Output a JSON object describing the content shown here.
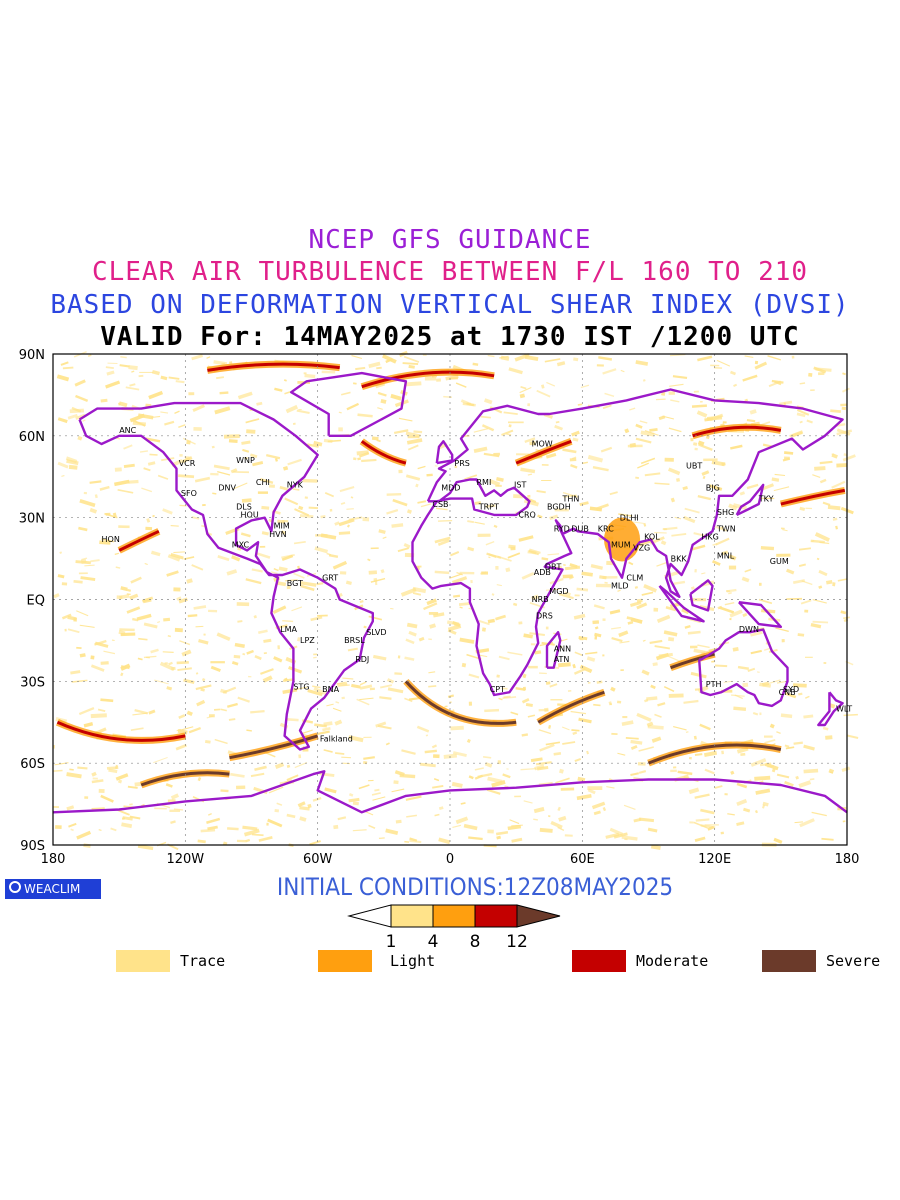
{
  "titles": {
    "line1": "NCEP GFS GUIDANCE",
    "line2": "CLEAR AIR TURBULENCE BETWEEN F/L 160 TO 210",
    "line3": "BASED ON DEFORMATION VERTICAL SHEAR INDEX (DVSI)",
    "line4": "VALID For: 14MAY2025 at 1730 IST /1200 UTC"
  },
  "colors": {
    "line1": "#9b1fd6",
    "line2": "#e0208a",
    "line3": "#2c46e0",
    "line4": "#000000",
    "coast": "#9b19c9",
    "trace": "#ffe38a",
    "light": "#ff9f0f",
    "moderate": "#c40000",
    "severe": "#6b3a2a"
  },
  "axes": {
    "lat_labels": [
      "90N",
      "60N",
      "30N",
      "EQ",
      "30S",
      "60S",
      "90S"
    ],
    "lon_labels": [
      "180",
      "120W",
      "60W",
      "0",
      "60E",
      "120E",
      "180"
    ]
  },
  "cities": [
    {
      "name": "ANC",
      "lon": -150,
      "lat": 61
    },
    {
      "name": "HON",
      "lon": -158,
      "lat": 21
    },
    {
      "name": "VCR",
      "lon": -123,
      "lat": 49
    },
    {
      "name": "SFO",
      "lon": -122,
      "lat": 38
    },
    {
      "name": "DNV",
      "lon": -105,
      "lat": 40
    },
    {
      "name": "WNP",
      "lon": -97,
      "lat": 50
    },
    {
      "name": "CHI",
      "lon": -88,
      "lat": 42
    },
    {
      "name": "NYK",
      "lon": -74,
      "lat": 41
    },
    {
      "name": "DLS",
      "lon": -97,
      "lat": 33
    },
    {
      "name": "HOU",
      "lon": -95,
      "lat": 30
    },
    {
      "name": "MIM",
      "lon": -80,
      "lat": 26
    },
    {
      "name": "HVN",
      "lon": -82,
      "lat": 23
    },
    {
      "name": "MXC",
      "lon": -99,
      "lat": 19
    },
    {
      "name": "BGT",
      "lon": -74,
      "lat": 5
    },
    {
      "name": "GRT",
      "lon": -58,
      "lat": 7
    },
    {
      "name": "LMA",
      "lon": -77,
      "lat": -12
    },
    {
      "name": "LPZ",
      "lon": -68,
      "lat": -16
    },
    {
      "name": "BRSL",
      "lon": -48,
      "lat": -16
    },
    {
      "name": "SLVD",
      "lon": -38,
      "lat": -13
    },
    {
      "name": "RDJ",
      "lon": -43,
      "lat": -23
    },
    {
      "name": "STG",
      "lon": -71,
      "lat": -33
    },
    {
      "name": "BNA",
      "lon": -58,
      "lat": -34
    },
    {
      "name": "Falkland",
      "lon": -59,
      "lat": -52
    },
    {
      "name": "MOW",
      "lon": 37,
      "lat": 56
    },
    {
      "name": "PRS",
      "lon": 2,
      "lat": 49
    },
    {
      "name": "RMI",
      "lon": 12,
      "lat": 42
    },
    {
      "name": "IST",
      "lon": 29,
      "lat": 41
    },
    {
      "name": "MDD",
      "lon": -4,
      "lat": 40
    },
    {
      "name": "CSB",
      "lon": -8,
      "lat": 34
    },
    {
      "name": "TRPT",
      "lon": 13,
      "lat": 33
    },
    {
      "name": "CRO",
      "lon": 31,
      "lat": 30
    },
    {
      "name": "BGDH",
      "lon": 44,
      "lat": 33
    },
    {
      "name": "THN",
      "lon": 51,
      "lat": 36
    },
    {
      "name": "RYD",
      "lon": 47,
      "lat": 25
    },
    {
      "name": "DUB",
      "lon": 55,
      "lat": 25
    },
    {
      "name": "KRC",
      "lon": 67,
      "lat": 25
    },
    {
      "name": "DLHI",
      "lon": 77,
      "lat": 29
    },
    {
      "name": "MUM",
      "lon": 73,
      "lat": 19
    },
    {
      "name": "VZG",
      "lon": 83,
      "lat": 18
    },
    {
      "name": "KOL",
      "lon": 88,
      "lat": 22
    },
    {
      "name": "DBT",
      "lon": 43,
      "lat": 11
    },
    {
      "name": "CLM",
      "lon": 80,
      "lat": 7
    },
    {
      "name": "MLD",
      "lon": 73,
      "lat": 4
    },
    {
      "name": "ADB",
      "lon": 38,
      "lat": 9
    },
    {
      "name": "MGD",
      "lon": 45,
      "lat": 2
    },
    {
      "name": "NRB",
      "lon": 37,
      "lat": -1
    },
    {
      "name": "DRS",
      "lon": 39,
      "lat": -7
    },
    {
      "name": "ANN",
      "lon": 47,
      "lat": -19
    },
    {
      "name": "ATN",
      "lon": 47,
      "lat": -23
    },
    {
      "name": "CPT",
      "lon": 18,
      "lat": -34
    },
    {
      "name": "BJG",
      "lon": 116,
      "lat": 40
    },
    {
      "name": "SHG",
      "lon": 121,
      "lat": 31
    },
    {
      "name": "TKY",
      "lon": 140,
      "lat": 36
    },
    {
      "name": "TWN",
      "lon": 121,
      "lat": 25
    },
    {
      "name": "HKG",
      "lon": 114,
      "lat": 22
    },
    {
      "name": "BKK",
      "lon": 100,
      "lat": 14
    },
    {
      "name": "MNL",
      "lon": 121,
      "lat": 15
    },
    {
      "name": "GUM",
      "lon": 145,
      "lat": 13
    },
    {
      "name": "DWN",
      "lon": 131,
      "lat": -12
    },
    {
      "name": "PTH",
      "lon": 116,
      "lat": -32
    },
    {
      "name": "CNB",
      "lon": 149,
      "lat": -35
    },
    {
      "name": "SYD",
      "lon": 151,
      "lat": -34
    },
    {
      "name": "WLT",
      "lon": 175,
      "lat": -41
    },
    {
      "name": "UBT",
      "lon": 107,
      "lat": 48
    }
  ],
  "footer": {
    "badge": "WEACLIM",
    "initial": "INITIAL CONDITIONS:12Z08MAY2025"
  },
  "scale": {
    "ticks": [
      "1",
      "4",
      "8",
      "12"
    ]
  },
  "legend": [
    {
      "label": "Trace",
      "color_key": "trace"
    },
    {
      "label": "Light",
      "color_key": "light"
    },
    {
      "label": "Moderate",
      "color_key": "moderate"
    },
    {
      "label": "Severe",
      "color_key": "severe"
    }
  ]
}
